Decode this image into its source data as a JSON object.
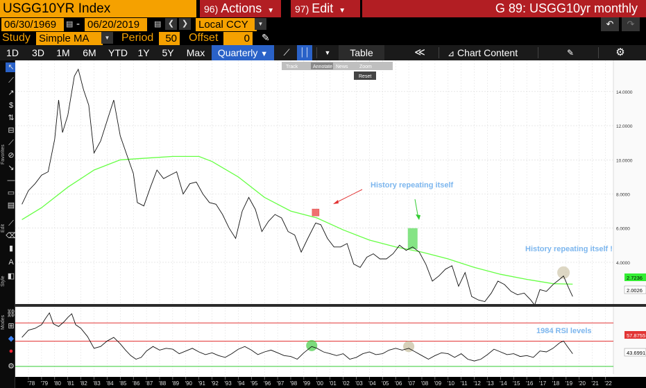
{
  "header": {
    "ticker": "USGG10YR Index",
    "actions": {
      "num": "96)",
      "label": "Actions"
    },
    "edit": {
      "num": "97)",
      "label": "Edit"
    },
    "title": "G 89: USGG10yr monthly"
  },
  "date_range": {
    "start": "06/30/1969",
    "sep": "-",
    "end": "06/20/2019",
    "currency": "Local CCY"
  },
  "study": {
    "label": "Study",
    "value": "Simple MA",
    "period_label": "Period",
    "period": "50",
    "offset_label": "Offset",
    "offset": "0"
  },
  "toolbar": {
    "ranges": [
      "1D",
      "3D",
      "1M",
      "6M",
      "YTD",
      "1Y",
      "5Y",
      "Max"
    ],
    "frequency": "Quarterly",
    "table": "Table",
    "chart_content": "Chart Content"
  },
  "mini_toolbar": {
    "track": "Track",
    "annotate": "Annotate",
    "news": "News",
    "zoom": "Zoom",
    "reset": "Reset"
  },
  "side": {
    "favorites": "Favorites",
    "edit": "Edit",
    "style": "Style",
    "modes": "Modes"
  },
  "colors": {
    "orange": "#f5a100",
    "red": "#b21e23",
    "green": "#66ff44",
    "price": "#000000",
    "rsi_red": "#e23333",
    "annot": "#7cb6ee"
  },
  "chart_data": [
    {
      "type": "line",
      "x_ticks": [
        "'78",
        "'79",
        "'80",
        "'81",
        "'82",
        "'83",
        "'84",
        "'85",
        "'86",
        "'87",
        "'88",
        "'89",
        "'90",
        "'91",
        "'92",
        "'93",
        "'94",
        "'95",
        "'96",
        "'97",
        "'98",
        "'99",
        "'00",
        "'01",
        "'02",
        "'03",
        "'04",
        "'05",
        "'06",
        "'07",
        "'08",
        "'09",
        "'10",
        "'11",
        "'12",
        "'13",
        "'14",
        "'15",
        "'16",
        "'17",
        "'18",
        "'19",
        "'20",
        "'21",
        "'22"
      ],
      "y_ticks": [
        "14.0000",
        "12.0000",
        "10.0000",
        "8.0000",
        "6.0000",
        "4.0000"
      ],
      "ylim": [
        1.6,
        15.7
      ],
      "series": [
        {
          "values": [
            [
              1977.5,
              7.4
            ],
            [
              1978,
              8.2
            ],
            [
              1978.5,
              8.6
            ],
            [
              1979,
              9.1
            ],
            [
              1979.5,
              9.3
            ],
            [
              1980,
              11.2
            ],
            [
              1980.3,
              13.5
            ],
            [
              1980.6,
              11.6
            ],
            [
              1981,
              12.6
            ],
            [
              1981.5,
              14.9
            ],
            [
              1981.8,
              15.3
            ],
            [
              1982.2,
              14.1
            ],
            [
              1982.6,
              13.2
            ],
            [
              1983,
              10.4
            ],
            [
              1983.5,
              11.1
            ],
            [
              1984,
              12.3
            ],
            [
              1984.5,
              13.5
            ],
            [
              1985,
              11.4
            ],
            [
              1985.5,
              10.3
            ],
            [
              1986,
              9.2
            ],
            [
              1986.3,
              7.5
            ],
            [
              1986.8,
              7.3
            ],
            [
              1987.3,
              8.4
            ],
            [
              1987.8,
              9.4
            ],
            [
              1988.3,
              8.9
            ],
            [
              1988.8,
              9.1
            ],
            [
              1989.3,
              9.3
            ],
            [
              1989.8,
              8.0
            ],
            [
              1990.3,
              8.6
            ],
            [
              1990.8,
              8.7
            ],
            [
              1991.3,
              8.0
            ],
            [
              1991.8,
              7.5
            ],
            [
              1992.3,
              7.4
            ],
            [
              1992.8,
              6.8
            ],
            [
              1993.3,
              6.0
            ],
            [
              1993.8,
              5.4
            ],
            [
              1994.3,
              7.0
            ],
            [
              1994.8,
              7.8
            ],
            [
              1995.3,
              7.1
            ],
            [
              1995.8,
              5.8
            ],
            [
              1996.3,
              6.4
            ],
            [
              1996.8,
              6.8
            ],
            [
              1997.3,
              6.6
            ],
            [
              1997.8,
              5.8
            ],
            [
              1998.3,
              5.6
            ],
            [
              1998.8,
              4.6
            ],
            [
              1999.3,
              5.4
            ],
            [
              1999.9,
              6.3
            ],
            [
              2000.3,
              6.2
            ],
            [
              2000.8,
              5.4
            ],
            [
              2001.3,
              4.9
            ],
            [
              2001.8,
              4.9
            ],
            [
              2002.3,
              5.1
            ],
            [
              2002.8,
              3.9
            ],
            [
              2003.3,
              3.7
            ],
            [
              2003.8,
              4.3
            ],
            [
              2004.3,
              4.5
            ],
            [
              2004.8,
              4.2
            ],
            [
              2005.3,
              4.2
            ],
            [
              2005.8,
              4.5
            ],
            [
              2006.3,
              5.0
            ],
            [
              2006.8,
              4.7
            ],
            [
              2007.3,
              4.9
            ],
            [
              2007.8,
              4.6
            ],
            [
              2008.3,
              3.9
            ],
            [
              2008.8,
              2.9
            ],
            [
              2009.3,
              3.2
            ],
            [
              2009.8,
              3.6
            ],
            [
              2010.3,
              3.8
            ],
            [
              2010.8,
              2.6
            ],
            [
              2011.3,
              3.4
            ],
            [
              2011.8,
              2.0
            ],
            [
              2012.3,
              1.8
            ],
            [
              2012.8,
              1.7
            ],
            [
              2013.3,
              2.2
            ],
            [
              2013.8,
              2.9
            ],
            [
              2014.3,
              2.7
            ],
            [
              2014.8,
              2.3
            ],
            [
              2015.3,
              2.1
            ],
            [
              2015.8,
              2.2
            ],
            [
              2016.3,
              1.8
            ],
            [
              2016.6,
              1.5
            ],
            [
              2017.0,
              2.4
            ],
            [
              2017.5,
              2.3
            ],
            [
              2018.0,
              2.7
            ],
            [
              2018.5,
              3.0
            ],
            [
              2018.8,
              3.2
            ],
            [
              2019.2,
              2.5
            ],
            [
              2019.5,
              2.0
            ]
          ]
        },
        {
          "values": [
            [
              1977.5,
              6.5
            ],
            [
              1979,
              7.2
            ],
            [
              1981,
              8.4
            ],
            [
              1983,
              9.4
            ],
            [
              1985,
              10.0
            ],
            [
              1987,
              10.1
            ],
            [
              1989,
              10.2
            ],
            [
              1991,
              10.2
            ],
            [
              1992,
              9.9
            ],
            [
              1994,
              9.0
            ],
            [
              1996,
              7.8
            ],
            [
              1998,
              7.0
            ],
            [
              2000,
              6.6
            ],
            [
              2002,
              5.9
            ],
            [
              2004,
              5.3
            ],
            [
              2006,
              4.9
            ],
            [
              2008,
              4.6
            ],
            [
              2010,
              4.2
            ],
            [
              2012,
              3.7
            ],
            [
              2014,
              3.3
            ],
            [
              2016,
              3.0
            ],
            [
              2018,
              2.75
            ],
            [
              2019.5,
              2.72
            ]
          ]
        }
      ]
    },
    {
      "type": "line",
      "ylim": [
        20,
        95
      ],
      "series": [
        {
          "values": [
            [
              1977.5,
              62
            ],
            [
              1978,
              70
            ],
            [
              1978.5,
              72
            ],
            [
              1979,
              76
            ],
            [
              1979.3,
              83
            ],
            [
              1979.6,
              89
            ],
            [
              1979.9,
              77
            ],
            [
              1980.3,
              74
            ],
            [
              1980.7,
              79
            ],
            [
              1981.0,
              84
            ],
            [
              1981.3,
              88
            ],
            [
              1981.6,
              76
            ],
            [
              1982,
              72
            ],
            [
              1982.5,
              63
            ],
            [
              1983,
              50
            ],
            [
              1983.5,
              52
            ],
            [
              1984,
              58
            ],
            [
              1984.5,
              62
            ],
            [
              1985,
              55
            ],
            [
              1985.4,
              48
            ],
            [
              1985.8,
              42
            ],
            [
              1986.2,
              38
            ],
            [
              1986.6,
              40
            ],
            [
              1987,
              47
            ],
            [
              1987.5,
              52
            ],
            [
              1988,
              48
            ],
            [
              1988.5,
              50
            ],
            [
              1989,
              49
            ],
            [
              1989.5,
              44
            ],
            [
              1990,
              47
            ],
            [
              1990.5,
              50
            ],
            [
              1991,
              46
            ],
            [
              1991.5,
              43
            ],
            [
              1992,
              45
            ],
            [
              1992.5,
              42
            ],
            [
              1993,
              40
            ],
            [
              1993.5,
              44
            ],
            [
              1994,
              49
            ],
            [
              1994.5,
              52
            ],
            [
              1995,
              48
            ],
            [
              1995.5,
              43
            ],
            [
              1996,
              46
            ],
            [
              1996.5,
              48
            ],
            [
              1997,
              45
            ],
            [
              1997.5,
              42
            ],
            [
              1998,
              41
            ],
            [
              1998.5,
              38
            ],
            [
              1999,
              45
            ],
            [
              1999.6,
              52
            ],
            [
              2000,
              50
            ],
            [
              2000.5,
              46
            ],
            [
              2001,
              44
            ],
            [
              2001.5,
              42
            ],
            [
              2002,
              44
            ],
            [
              2002.5,
              38
            ],
            [
              2003,
              40
            ],
            [
              2003.5,
              44
            ],
            [
              2004,
              46
            ],
            [
              2004.5,
              43
            ],
            [
              2005,
              44
            ],
            [
              2005.5,
              48
            ],
            [
              2006,
              50
            ],
            [
              2006.5,
              48
            ],
            [
              2007,
              50
            ],
            [
              2007.5,
              46
            ],
            [
              2008,
              42
            ],
            [
              2008.5,
              38
            ],
            [
              2009,
              42
            ],
            [
              2009.5,
              45
            ],
            [
              2010,
              44
            ],
            [
              2010.5,
              40
            ],
            [
              2011,
              44
            ],
            [
              2011.5,
              38
            ],
            [
              2012,
              36
            ],
            [
              2012.5,
              38
            ],
            [
              2013,
              43
            ],
            [
              2013.5,
              49
            ],
            [
              2014,
              46
            ],
            [
              2014.5,
              43
            ],
            [
              2015,
              44
            ],
            [
              2015.5,
              41
            ],
            [
              2016,
              42
            ],
            [
              2016.5,
              40
            ],
            [
              2017,
              47
            ],
            [
              2017.5,
              46
            ],
            [
              2018,
              50
            ],
            [
              2018.5,
              56
            ],
            [
              2018.8,
              58
            ],
            [
              2019.1,
              52
            ],
            [
              2019.5,
              44
            ]
          ]
        }
      ]
    }
  ],
  "overlays": {
    "annot1": "History repeating itself",
    "annot2": "History repeating itself !",
    "annot3": "1984 RSI levels",
    "ma_last": "2.7236",
    "price_last": "2.0026",
    "rsi_upper": "57.8755",
    "rsi_last": "43.6991"
  }
}
